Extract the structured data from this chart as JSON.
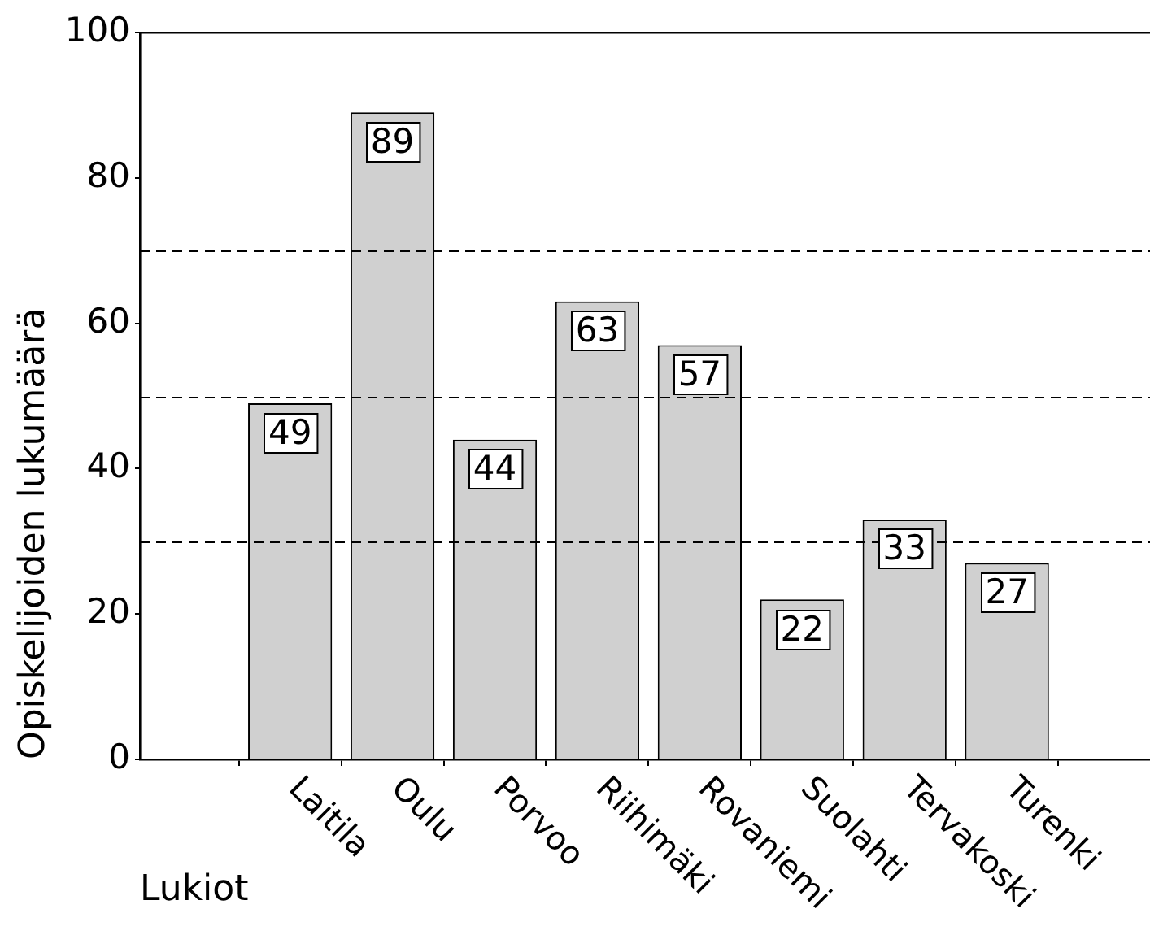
{
  "chart_data": {
    "type": "bar",
    "xlabel": "Lukiot",
    "ylabel": "Opiskelijoiden lukumäärä",
    "categories": [
      "Laitila",
      "Oulu",
      "Porvoo",
      "Riihimäki",
      "Rovaniemi",
      "Suolahti",
      "Tervakoski",
      "Turenki"
    ],
    "values": [
      49,
      89,
      44,
      63,
      57,
      22,
      33,
      27
    ],
    "color": "#d0d0d0",
    "ylim": [
      0,
      100
    ],
    "yticks": [
      0,
      20,
      40,
      60,
      80,
      100
    ],
    "grid": false,
    "legend": false,
    "data_labels": true,
    "ref_lines": [
      {
        "axis": "y",
        "value": 30,
        "line_style": "dashed",
        "color": "#000000"
      },
      {
        "axis": "y",
        "value": 50,
        "line_style": "dashed",
        "color": "#000000"
      },
      {
        "axis": "y",
        "value": 70,
        "line_style": "dashed",
        "color": "#000000"
      }
    ]
  }
}
